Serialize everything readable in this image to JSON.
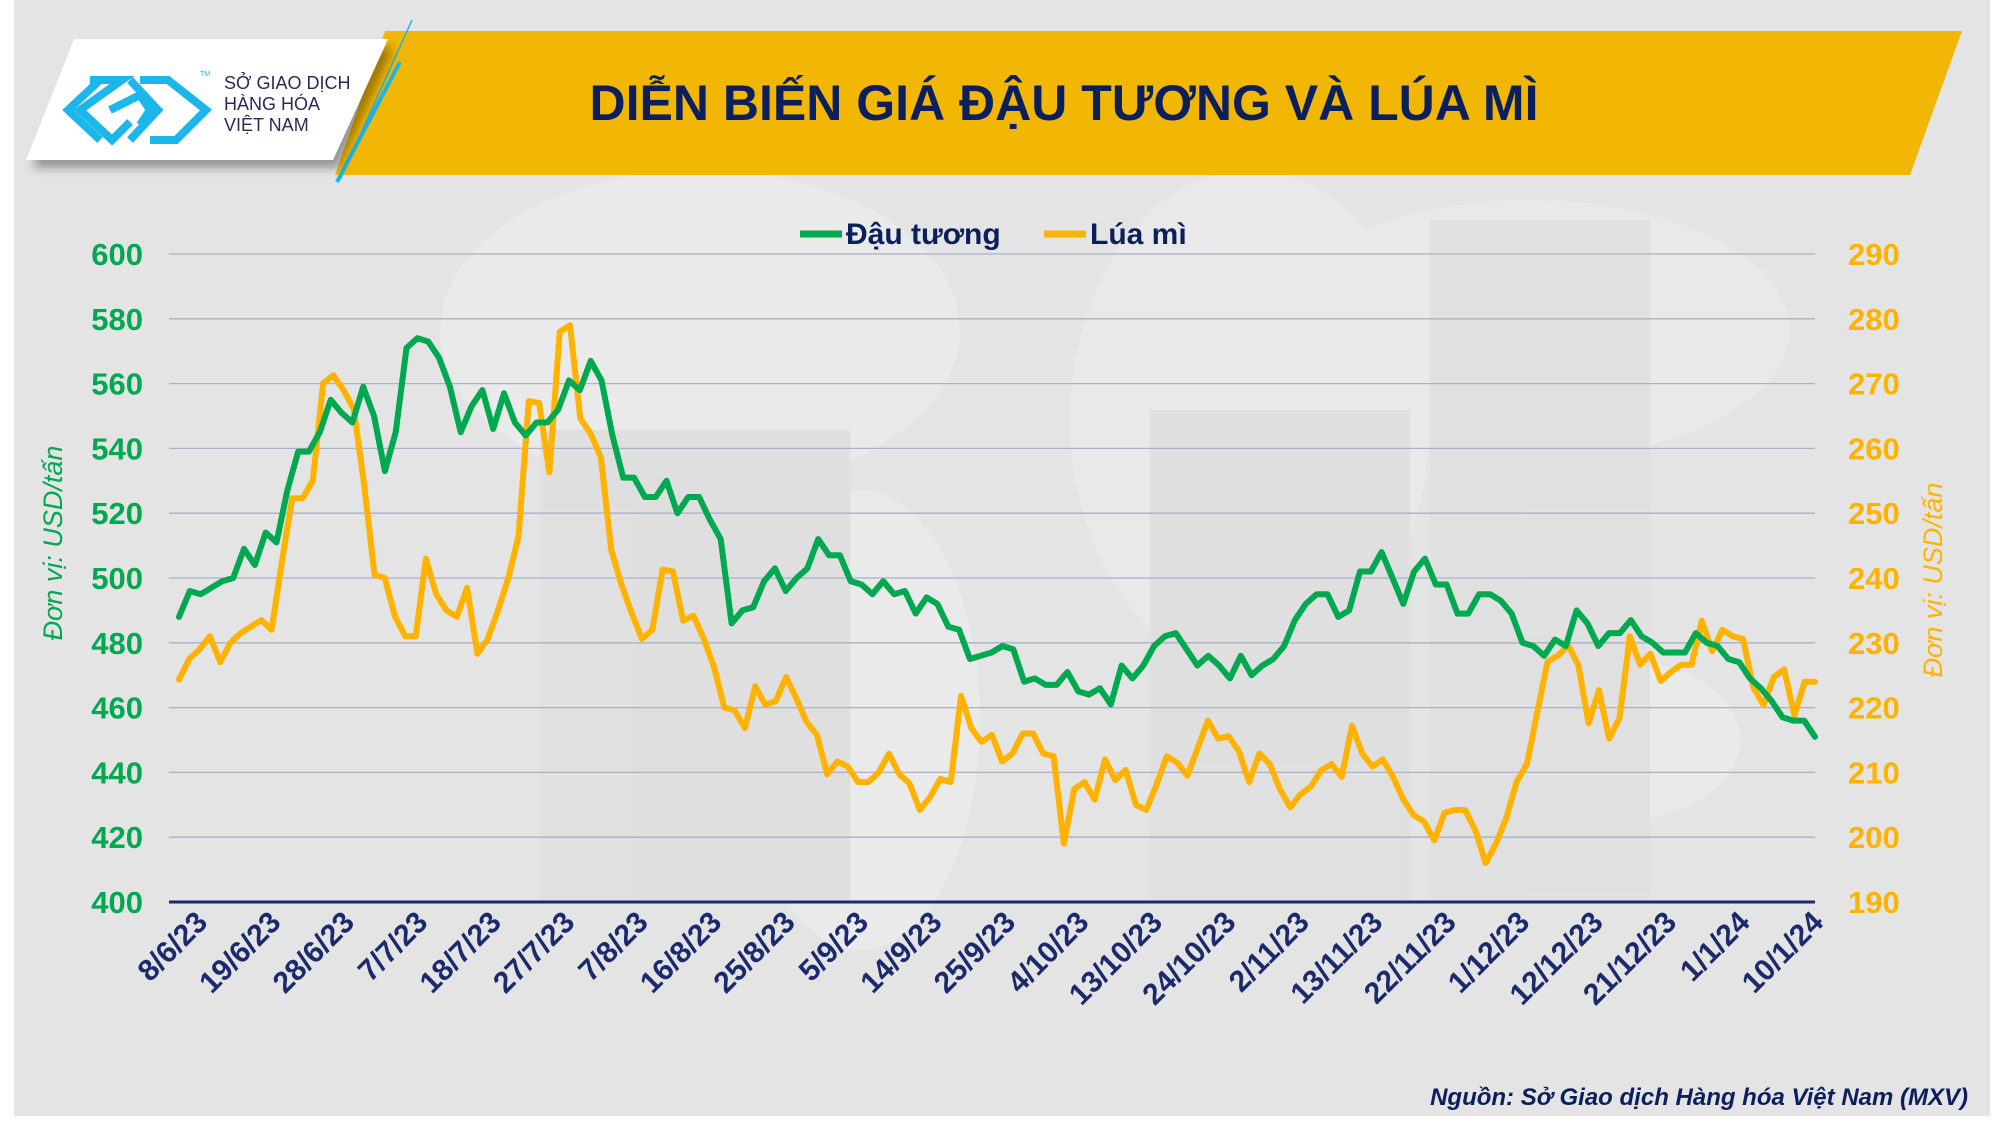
{
  "logo": {
    "lines": [
      "SỞ GIAO DỊCH",
      "HÀNG HÓA",
      "VIỆT NAM"
    ],
    "tm": "TM"
  },
  "title": "DIỄN BIẾN GIÁ ĐẬU TƯƠNG VÀ LÚA MÌ",
  "source": "Nguồn: Sở Giao dịch Hàng hóa Việt Nam (MXV)",
  "colors": {
    "soybean": "#00a84f",
    "wheat": "#ffb300",
    "title": "#0b1f5c",
    "banner": "#f2b705",
    "logo_blue": "#1bb6ea",
    "axis": "#1a2a6c",
    "grid": "#a9b0c8"
  },
  "chart_data": {
    "type": "line",
    "title": "DIỄN BIẾN GIÁ ĐẬU TƯƠNG VÀ LÚA MÌ",
    "legend_position": "top-center",
    "grid": true,
    "x_tick_labels": [
      "8/6/23",
      "19/6/23",
      "28/6/23",
      "7/7/23",
      "18/7/23",
      "27/7/23",
      "7/8/23",
      "16/8/23",
      "25/8/23",
      "5/9/23",
      "14/9/23",
      "25/9/23",
      "4/10/23",
      "13/10/23",
      "24/10/23",
      "2/11/23",
      "13/11/23",
      "22/11/23",
      "1/12/23",
      "12/12/23",
      "21/12/23",
      "1/1/24",
      "10/1/24"
    ],
    "y_left": {
      "label": "Đơn vị: USD/tấn",
      "lim": [
        400,
        600
      ],
      "ticks": [
        400,
        420,
        440,
        460,
        480,
        500,
        520,
        540,
        560,
        580,
        600
      ]
    },
    "y_right": {
      "label": "Đơn vị: USD/tấn",
      "lim": [
        190,
        290
      ],
      "ticks": [
        190,
        200,
        210,
        220,
        230,
        240,
        250,
        260,
        270,
        280,
        290
      ]
    },
    "series": [
      {
        "name": "Đậu tương",
        "axis": "left",
        "color": "#00a84f",
        "values": [
          488,
          496,
          495,
          497,
          499,
          500,
          509,
          504,
          514,
          511,
          527,
          539,
          539,
          545,
          555,
          551,
          548,
          559,
          550,
          533,
          545,
          571,
          574,
          573,
          568,
          559,
          545,
          553,
          558,
          546,
          557,
          548,
          544,
          548,
          548,
          552,
          561,
          558,
          567,
          561,
          544,
          531,
          531,
          525,
          525,
          530,
          520,
          525,
          525,
          518,
          512,
          486,
          490,
          491,
          499,
          503,
          496,
          500,
          503,
          512,
          507,
          507,
          499,
          498,
          495,
          499,
          495,
          496,
          489,
          494,
          492,
          485,
          484,
          475,
          476,
          477,
          479,
          478,
          468,
          469,
          467,
          467,
          471,
          465,
          464,
          466,
          461,
          473,
          469,
          473,
          479,
          482,
          483,
          478,
          473,
          476,
          473,
          469,
          476,
          470,
          473,
          475,
          479,
          487,
          492,
          495,
          495,
          488,
          490,
          502,
          502,
          508,
          500,
          492,
          502,
          506,
          498,
          498,
          489,
          489,
          495,
          495,
          493,
          489,
          480,
          479,
          476,
          481,
          479,
          490,
          486,
          479,
          483,
          483,
          487,
          482,
          480,
          477,
          477,
          477,
          483,
          480,
          479,
          475,
          474,
          469,
          466,
          462,
          457,
          456,
          456,
          451
        ]
      },
      {
        "name": "Lúa mì",
        "axis": "right",
        "color": "#ffb300",
        "values": [
          224.3,
          227.5,
          229,
          231,
          227,
          230,
          231.5,
          232.5,
          233.5,
          232,
          242.5,
          252.3,
          252.3,
          255,
          270,
          271.3,
          269,
          266,
          254.3,
          240.5,
          240,
          234,
          231,
          231,
          243,
          237.5,
          235,
          234,
          238.5,
          228.3,
          230.6,
          235,
          240,
          246.4,
          267.3,
          267,
          256.3,
          278,
          279,
          264.6,
          262.3,
          258.6,
          244.4,
          239,
          234.6,
          230.6,
          232,
          241.3,
          241,
          233.4,
          234.2,
          230.6,
          226.3,
          220,
          219.6,
          216.8,
          223.3,
          220.4,
          221,
          224.7,
          221.4,
          217.8,
          215.8,
          209.7,
          211.7,
          210.9,
          208.5,
          208.5,
          210,
          212.9,
          209.7,
          208.3,
          204.2,
          206.2,
          209,
          208.5,
          221.8,
          216.8,
          214.7,
          215.8,
          211.7,
          212.9,
          216,
          216,
          212.9,
          212.5,
          199,
          207.4,
          208.5,
          205.8,
          212,
          208.8,
          210.4,
          205,
          204.2,
          208.1,
          212.5,
          211.5,
          209.5,
          213.7,
          218,
          215.2,
          215.6,
          213.3,
          208.5,
          212.9,
          211.3,
          207.4,
          204.6,
          206.6,
          207.8,
          210.3,
          211.3,
          209.3,
          217.2,
          212.9,
          210.9,
          212,
          209.3,
          205.8,
          203.4,
          202.4,
          199.5,
          203.8,
          204.2,
          204.2,
          201,
          196,
          199,
          203,
          208.5,
          211.3,
          219.2,
          227.1,
          228,
          229.6,
          226.6,
          217.6,
          222.7,
          215.2,
          218.4,
          231,
          226.6,
          228.3,
          224.1,
          225.5,
          226.6,
          226.6,
          233.4,
          228.7,
          232,
          231,
          230.6,
          223.1,
          220.4,
          224.7,
          225.9,
          218.8,
          224,
          224
        ]
      }
    ]
  }
}
